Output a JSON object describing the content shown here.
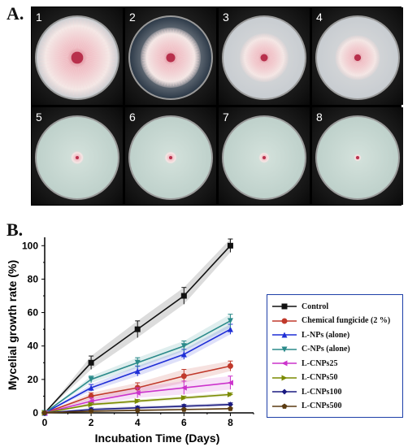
{
  "panel_a": {
    "label": "A.",
    "plates": [
      {
        "num": "1",
        "colony": 0.98,
        "type": "control"
      },
      {
        "num": "2",
        "colony": 0.74,
        "type": "fungicide"
      },
      {
        "num": "3",
        "colony": 0.6,
        "type": "lnp"
      },
      {
        "num": "4",
        "colony": 0.55,
        "type": "cnp"
      },
      {
        "num": "5",
        "colony": 0.16,
        "type": "small"
      },
      {
        "num": "6",
        "colony": 0.15,
        "type": "small"
      },
      {
        "num": "7",
        "colony": 0.13,
        "type": "small"
      },
      {
        "num": "8",
        "colony": 0.09,
        "type": "small"
      }
    ]
  },
  "panel_b": {
    "label": "B."
  },
  "chart_data": {
    "type": "line",
    "xlabel": "Incubation Time (Days)",
    "ylabel": "Mycelial growth rate (%)",
    "x": [
      0,
      2,
      4,
      6,
      8
    ],
    "xlim": [
      0,
      9
    ],
    "ylim": [
      0,
      105
    ],
    "xticks": [
      "0",
      "2",
      "4",
      "6",
      "8"
    ],
    "yticks": [
      "0",
      "20",
      "40",
      "60",
      "80",
      "100"
    ],
    "legend_position": "right",
    "series": [
      {
        "name": "Control",
        "values": [
          0,
          30,
          50,
          70,
          100
        ],
        "err": [
          0,
          4,
          5,
          5,
          4
        ],
        "color": "#111111",
        "marker": "square"
      },
      {
        "name": "Chemical fungicide (2 %)",
        "values": [
          0,
          10,
          15,
          22,
          28
        ],
        "err": [
          0,
          2,
          3,
          4,
          3
        ],
        "color": "#c0392b",
        "marker": "circle"
      },
      {
        "name": "L-NPs (alone)",
        "values": [
          0,
          15,
          25,
          35,
          50
        ],
        "err": [
          0,
          2,
          3,
          3,
          3
        ],
        "color": "#1f2fd6",
        "marker": "triangle-up"
      },
      {
        "name": "C-NPs (alone)",
        "values": [
          0,
          20,
          30,
          40,
          55
        ],
        "err": [
          0,
          2,
          3,
          3,
          4
        ],
        "color": "#2b8a8a",
        "marker": "triangle-down"
      },
      {
        "name": "L-CNPs25",
        "values": [
          0,
          7,
          12,
          15,
          18
        ],
        "err": [
          0,
          2,
          3,
          4,
          4
        ],
        "color": "#cc33cc",
        "marker": "triangle-left"
      },
      {
        "name": "L-CNPs50",
        "values": [
          0,
          5,
          7,
          9,
          11
        ],
        "err": [
          0,
          1,
          1,
          1,
          1
        ],
        "color": "#7a8a00",
        "marker": "triangle-right"
      },
      {
        "name": "L-CNPs100",
        "values": [
          0,
          2,
          3,
          4,
          5
        ],
        "err": [
          0,
          1,
          1,
          1,
          1
        ],
        "color": "#1a1a80",
        "marker": "diamond"
      },
      {
        "name": "L-CNPs500",
        "values": [
          0,
          1,
          1.5,
          2,
          2.5
        ],
        "err": [
          0,
          0.5,
          0.5,
          0.5,
          0.5
        ],
        "color": "#5a3a10",
        "marker": "pentagon"
      }
    ]
  }
}
